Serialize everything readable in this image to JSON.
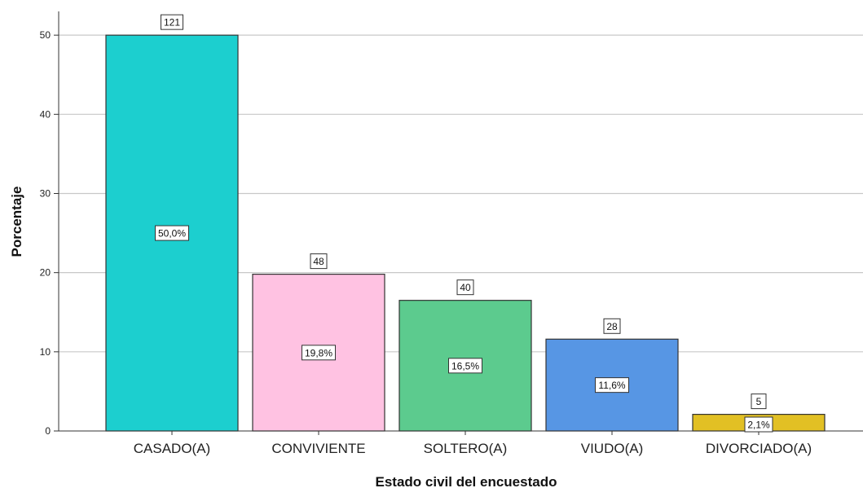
{
  "chart_data": {
    "type": "bar",
    "categories": [
      "CASADO(A)",
      "CONVIVIENTE",
      "SOLTERO(A)",
      "VIUDO(A)",
      "DIVORCIADO(A)"
    ],
    "values": [
      50.0,
      19.8,
      16.5,
      11.6,
      2.1
    ],
    "value_labels": [
      "50,0%",
      "19,8%",
      "16,5%",
      "11,6%",
      "2,1%"
    ],
    "count_labels": [
      "121",
      "48",
      "40",
      "28",
      "5"
    ],
    "colors": [
      "#1ccfcf",
      "#ffc2e2",
      "#5ccb8e",
      "#5796e4",
      "#e2c024"
    ],
    "xlabel": "Estado civil del encuestado",
    "ylabel": "Porcentaje",
    "ylim": [
      0,
      53
    ],
    "yticks": [
      0,
      10,
      20,
      30,
      40,
      50
    ],
    "grid": true
  }
}
